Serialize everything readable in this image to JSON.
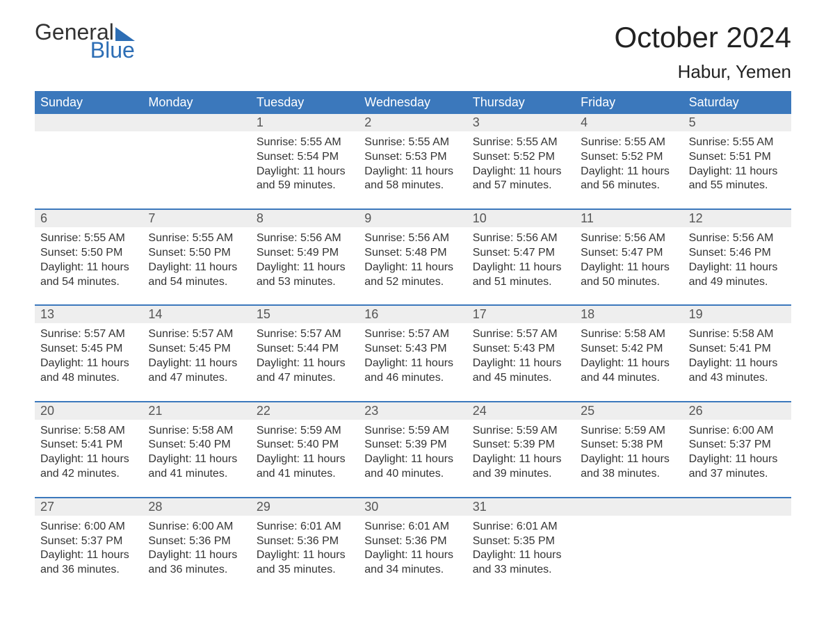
{
  "brand": {
    "word1": "General",
    "word2": "Blue"
  },
  "title": "October 2024",
  "location": "Habur, Yemen",
  "colors": {
    "brand_blue": "#2d6eb5",
    "header_blue": "#3b78bc",
    "row_grey": "#eeeeee",
    "text": "#333333",
    "bg": "#ffffff"
  },
  "fonts": {
    "family": "Arial",
    "title_pt": 42,
    "location_pt": 26,
    "dow_pt": 18,
    "daynum_pt": 18,
    "body_pt": 16
  },
  "dow": [
    "Sunday",
    "Monday",
    "Tuesday",
    "Wednesday",
    "Thursday",
    "Friday",
    "Saturday"
  ],
  "weeks": [
    [
      null,
      null,
      {
        "n": "1",
        "sr": "5:55 AM",
        "ss": "5:54 PM",
        "dl": "11 hours and 59 minutes."
      },
      {
        "n": "2",
        "sr": "5:55 AM",
        "ss": "5:53 PM",
        "dl": "11 hours and 58 minutes."
      },
      {
        "n": "3",
        "sr": "5:55 AM",
        "ss": "5:52 PM",
        "dl": "11 hours and 57 minutes."
      },
      {
        "n": "4",
        "sr": "5:55 AM",
        "ss": "5:52 PM",
        "dl": "11 hours and 56 minutes."
      },
      {
        "n": "5",
        "sr": "5:55 AM",
        "ss": "5:51 PM",
        "dl": "11 hours and 55 minutes."
      }
    ],
    [
      {
        "n": "6",
        "sr": "5:55 AM",
        "ss": "5:50 PM",
        "dl": "11 hours and 54 minutes."
      },
      {
        "n": "7",
        "sr": "5:55 AM",
        "ss": "5:50 PM",
        "dl": "11 hours and 54 minutes."
      },
      {
        "n": "8",
        "sr": "5:56 AM",
        "ss": "5:49 PM",
        "dl": "11 hours and 53 minutes."
      },
      {
        "n": "9",
        "sr": "5:56 AM",
        "ss": "5:48 PM",
        "dl": "11 hours and 52 minutes."
      },
      {
        "n": "10",
        "sr": "5:56 AM",
        "ss": "5:47 PM",
        "dl": "11 hours and 51 minutes."
      },
      {
        "n": "11",
        "sr": "5:56 AM",
        "ss": "5:47 PM",
        "dl": "11 hours and 50 minutes."
      },
      {
        "n": "12",
        "sr": "5:56 AM",
        "ss": "5:46 PM",
        "dl": "11 hours and 49 minutes."
      }
    ],
    [
      {
        "n": "13",
        "sr": "5:57 AM",
        "ss": "5:45 PM",
        "dl": "11 hours and 48 minutes."
      },
      {
        "n": "14",
        "sr": "5:57 AM",
        "ss": "5:45 PM",
        "dl": "11 hours and 47 minutes."
      },
      {
        "n": "15",
        "sr": "5:57 AM",
        "ss": "5:44 PM",
        "dl": "11 hours and 47 minutes."
      },
      {
        "n": "16",
        "sr": "5:57 AM",
        "ss": "5:43 PM",
        "dl": "11 hours and 46 minutes."
      },
      {
        "n": "17",
        "sr": "5:57 AM",
        "ss": "5:43 PM",
        "dl": "11 hours and 45 minutes."
      },
      {
        "n": "18",
        "sr": "5:58 AM",
        "ss": "5:42 PM",
        "dl": "11 hours and 44 minutes."
      },
      {
        "n": "19",
        "sr": "5:58 AM",
        "ss": "5:41 PM",
        "dl": "11 hours and 43 minutes."
      }
    ],
    [
      {
        "n": "20",
        "sr": "5:58 AM",
        "ss": "5:41 PM",
        "dl": "11 hours and 42 minutes."
      },
      {
        "n": "21",
        "sr": "5:58 AM",
        "ss": "5:40 PM",
        "dl": "11 hours and 41 minutes."
      },
      {
        "n": "22",
        "sr": "5:59 AM",
        "ss": "5:40 PM",
        "dl": "11 hours and 41 minutes."
      },
      {
        "n": "23",
        "sr": "5:59 AM",
        "ss": "5:39 PM",
        "dl": "11 hours and 40 minutes."
      },
      {
        "n": "24",
        "sr": "5:59 AM",
        "ss": "5:39 PM",
        "dl": "11 hours and 39 minutes."
      },
      {
        "n": "25",
        "sr": "5:59 AM",
        "ss": "5:38 PM",
        "dl": "11 hours and 38 minutes."
      },
      {
        "n": "26",
        "sr": "6:00 AM",
        "ss": "5:37 PM",
        "dl": "11 hours and 37 minutes."
      }
    ],
    [
      {
        "n": "27",
        "sr": "6:00 AM",
        "ss": "5:37 PM",
        "dl": "11 hours and 36 minutes."
      },
      {
        "n": "28",
        "sr": "6:00 AM",
        "ss": "5:36 PM",
        "dl": "11 hours and 36 minutes."
      },
      {
        "n": "29",
        "sr": "6:01 AM",
        "ss": "5:36 PM",
        "dl": "11 hours and 35 minutes."
      },
      {
        "n": "30",
        "sr": "6:01 AM",
        "ss": "5:36 PM",
        "dl": "11 hours and 34 minutes."
      },
      {
        "n": "31",
        "sr": "6:01 AM",
        "ss": "5:35 PM",
        "dl": "11 hours and 33 minutes."
      },
      null,
      null
    ]
  ],
  "labels": {
    "sunrise": "Sunrise: ",
    "sunset": "Sunset: ",
    "daylight": "Daylight: "
  }
}
